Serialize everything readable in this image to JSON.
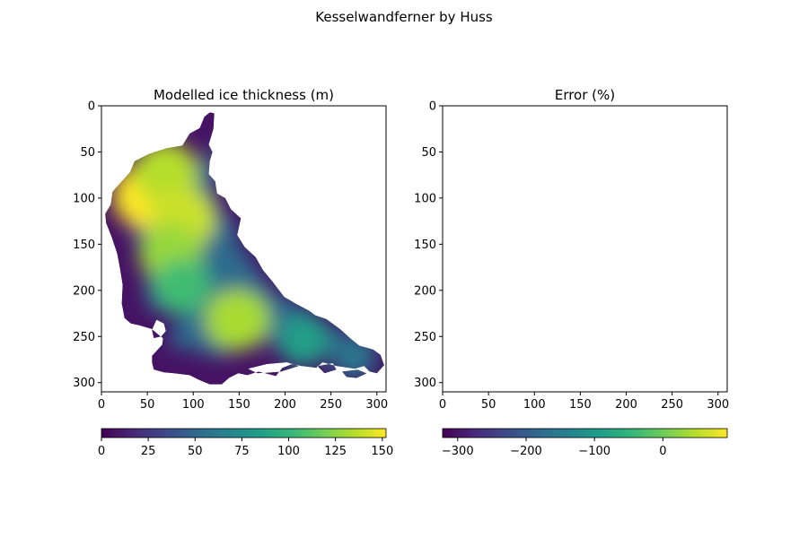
{
  "figure": {
    "title": "Kesselwandferner by Huss"
  },
  "chart_data": [
    {
      "type": "heatmap",
      "title": "Modelled ice thickness (m)",
      "xlim": [
        0,
        310
      ],
      "ylim": [
        310,
        0
      ],
      "xticks": [
        "0",
        "50",
        "100",
        "150",
        "200",
        "250",
        "300"
      ],
      "yticks": [
        "0",
        "50",
        "100",
        "150",
        "200",
        "250",
        "300"
      ],
      "colormap": "viridis",
      "colorbar": {
        "range": [
          0,
          152
        ],
        "ticks": [
          "0",
          "25",
          "50",
          "75",
          "100",
          "125",
          "150"
        ]
      },
      "outline": [
        [
          118,
          7
        ],
        [
          123,
          8
        ],
        [
          122,
          25
        ],
        [
          117,
          42
        ],
        [
          121,
          50
        ],
        [
          118,
          60
        ],
        [
          117,
          74
        ],
        [
          124,
          82
        ],
        [
          126,
          95
        ],
        [
          135,
          100
        ],
        [
          141,
          112
        ],
        [
          152,
          122
        ],
        [
          148,
          140
        ],
        [
          156,
          153
        ],
        [
          168,
          164
        ],
        [
          176,
          178
        ],
        [
          186,
          190
        ],
        [
          199,
          207
        ],
        [
          211,
          214
        ],
        [
          226,
          222
        ],
        [
          233,
          227
        ],
        [
          245,
          231
        ],
        [
          260,
          242
        ],
        [
          271,
          252
        ],
        [
          281,
          260
        ],
        [
          296,
          264
        ],
        [
          304,
          270
        ],
        [
          308,
          281
        ],
        [
          300,
          290
        ],
        [
          292,
          288
        ],
        [
          286,
          282
        ],
        [
          276,
          285
        ],
        [
          256,
          282
        ],
        [
          241,
          278
        ],
        [
          234,
          284
        ],
        [
          218,
          282
        ],
        [
          207,
          280
        ],
        [
          197,
          284
        ],
        [
          190,
          293
        ],
        [
          171,
          288
        ],
        [
          159,
          292
        ],
        [
          149,
          290
        ],
        [
          139,
          295
        ],
        [
          131,
          302
        ],
        [
          118,
          302
        ],
        [
          106,
          297
        ],
        [
          96,
          292
        ],
        [
          79,
          290
        ],
        [
          68,
          289
        ],
        [
          57,
          286
        ],
        [
          55,
          278
        ],
        [
          55,
          271
        ],
        [
          66,
          259
        ],
        [
          67,
          252
        ],
        [
          55,
          242
        ],
        [
          41,
          238
        ],
        [
          32,
          236
        ],
        [
          25,
          230
        ],
        [
          22,
          214
        ],
        [
          23,
          194
        ],
        [
          20,
          176
        ],
        [
          17,
          160
        ],
        [
          11,
          142
        ],
        [
          5,
          127
        ],
        [
          4,
          117
        ],
        [
          10,
          107
        ],
        [
          12,
          93
        ],
        [
          31,
          72
        ],
        [
          36,
          60
        ],
        [
          52,
          52
        ],
        [
          71,
          46
        ],
        [
          88,
          43
        ],
        [
          96,
          30
        ],
        [
          107,
          24
        ],
        [
          112,
          12
        ]
      ],
      "holes": [
        [
          [
            60,
            232
          ],
          [
            68,
            236
          ],
          [
            70,
            244
          ],
          [
            65,
            250
          ],
          [
            57,
            252
          ],
          [
            55,
            243
          ]
        ],
        [
          [
            160,
            285
          ],
          [
            180,
            280
          ],
          [
            202,
            278
          ],
          [
            215,
            282
          ],
          [
            196,
            288
          ],
          [
            170,
            290
          ]
        ],
        [
          [
            235,
            282
          ],
          [
            252,
            279
          ],
          [
            256,
            286
          ],
          [
            243,
            290
          ]
        ],
        [
          [
            262,
            288
          ],
          [
            279,
            286
          ],
          [
            289,
            290
          ],
          [
            278,
            295
          ],
          [
            267,
            294
          ]
        ]
      ],
      "peaks": [
        {
          "x": 50,
          "y": 98,
          "value": 152
        },
        {
          "x": 70,
          "y": 72,
          "value": 135
        },
        {
          "x": 88,
          "y": 122,
          "value": 140
        },
        {
          "x": 75,
          "y": 160,
          "value": 128
        },
        {
          "x": 148,
          "y": 232,
          "value": 132
        },
        {
          "x": 88,
          "y": 195,
          "value": 105
        },
        {
          "x": 220,
          "y": 255,
          "value": 85
        },
        {
          "x": 275,
          "y": 272,
          "value": 60
        }
      ]
    },
    {
      "type": "heatmap",
      "title": "Error (%)",
      "xlim": [
        0,
        310
      ],
      "ylim": [
        310,
        0
      ],
      "xticks": [
        "0",
        "50",
        "100",
        "150",
        "200",
        "250",
        "300"
      ],
      "yticks": [
        "0",
        "50",
        "100",
        "150",
        "200",
        "250",
        "300"
      ],
      "colormap": "viridis",
      "colorbar": {
        "range": [
          -322,
          94
        ],
        "ticks": [
          "−300",
          "−200",
          "−100",
          "0"
        ]
      },
      "values": []
    }
  ]
}
